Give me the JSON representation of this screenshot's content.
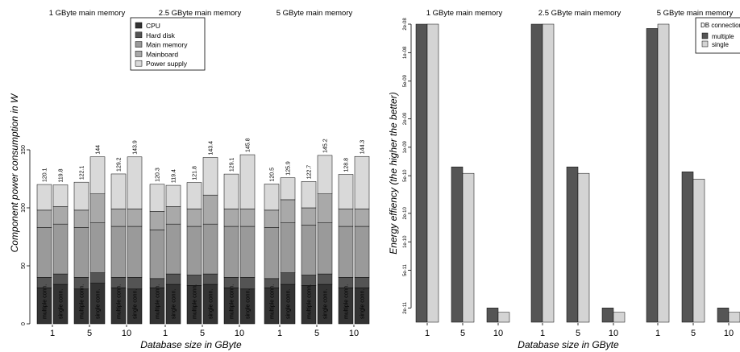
{
  "chart_data": [
    {
      "type": "bar",
      "stacked": true,
      "ylabel": "Component power consumption in W",
      "xlabel": "Database size in GByte",
      "ylim": [
        0,
        150
      ],
      "yticks": [
        0,
        50,
        100,
        150
      ],
      "panels": [
        "1 GByte main memory",
        "2.5 GByte main memory",
        "5 GByte main memory"
      ],
      "x_groups": [
        "1",
        "5",
        "10"
      ],
      "bar_labels": [
        "multiple conn.",
        "single conn.",
        "multiple conn.",
        "single conn.",
        "multiple conn.",
        "single conn."
      ],
      "legend": {
        "position": "top",
        "entries": [
          "CPU",
          "Hard disk",
          "Main memory",
          "Mainboard",
          "Power supply"
        ]
      },
      "colors": [
        "#333333",
        "#545454",
        "#9a9a9a",
        "#a9a9a9",
        "#d9d9d9"
      ],
      "totals": [
        [
          "120.1",
          "119.8",
          "122.1",
          "144",
          "129.2",
          "143.9"
        ],
        [
          "120.3",
          "119.4",
          "121.8",
          "143.4",
          "129.1",
          "145.8"
        ],
        [
          "120.5",
          "125.9",
          "122.7",
          "145.2",
          "128.8",
          "144.3"
        ]
      ],
      "stacks": [
        [
          [
            31,
            9,
            43,
            15,
            22.1
          ],
          [
            34,
            9,
            43,
            15,
            18.8
          ],
          [
            30,
            10,
            43,
            15,
            24.1
          ],
          [
            35,
            9,
            43,
            25,
            32
          ],
          [
            31,
            9,
            44,
            15,
            30.2
          ],
          [
            30,
            10,
            44,
            15,
            44.9
          ]
        ],
        [
          [
            31,
            8,
            42,
            16,
            23.3
          ],
          [
            34,
            9,
            43,
            15,
            18.4
          ],
          [
            33,
            9,
            42,
            15,
            22.8
          ],
          [
            34,
            9,
            43,
            25,
            32.4
          ],
          [
            31,
            9,
            44,
            15,
            30.1
          ],
          [
            30,
            10,
            44,
            15,
            46.8
          ]
        ],
        [
          [
            31,
            8,
            44,
            15,
            22.5
          ],
          [
            34,
            10,
            43,
            20,
            18.9
          ],
          [
            33,
            9,
            43,
            15,
            22.7
          ],
          [
            34,
            9,
            44,
            25,
            33.2
          ],
          [
            31,
            9,
            44,
            15,
            29.8
          ],
          [
            31,
            9,
            44,
            15,
            45.3
          ]
        ]
      ]
    },
    {
      "type": "bar",
      "ylabel": "Energy effiency (the higher the better)",
      "xlabel": "Database size in GByte",
      "yscale": "log",
      "ylim": [
        1.5e-11,
        2e-08
      ],
      "ytick_labels": [
        "2e-08",
        "1e-08",
        "5e-09",
        "2e-09",
        "1e-09",
        "5e-10",
        "2e-10",
        "1e-10",
        "5e-11",
        "2e-11"
      ],
      "ytick_values": [
        2e-08,
        1e-08,
        5e-09,
        2e-09,
        1e-09,
        5e-10,
        2e-10,
        1e-10,
        5e-11,
        2e-11
      ],
      "panels": [
        "1 GByte main memory",
        "2.5 GByte main memory",
        "5 GByte main memory"
      ],
      "categories": [
        "1",
        "5",
        "10"
      ],
      "legend": {
        "title": "DB connection type",
        "position": "top-right"
      },
      "series": [
        {
          "name": "multiple",
          "color": "#555555",
          "values": [
            [
              2e-08,
              6.2e-10,
              2e-11
            ],
            [
              2e-08,
              6.2e-10,
              2e-11
            ],
            [
              1.8e-08,
              5.5e-10,
              2e-11
            ]
          ]
        },
        {
          "name": "single",
          "color": "#d4d4d4",
          "values": [
            [
              2e-08,
              5.3e-10,
              1.8e-11
            ],
            [
              2e-08,
              5.3e-10,
              1.8e-11
            ],
            [
              2e-08,
              4.6e-10,
              1.8e-11
            ]
          ]
        }
      ]
    }
  ]
}
